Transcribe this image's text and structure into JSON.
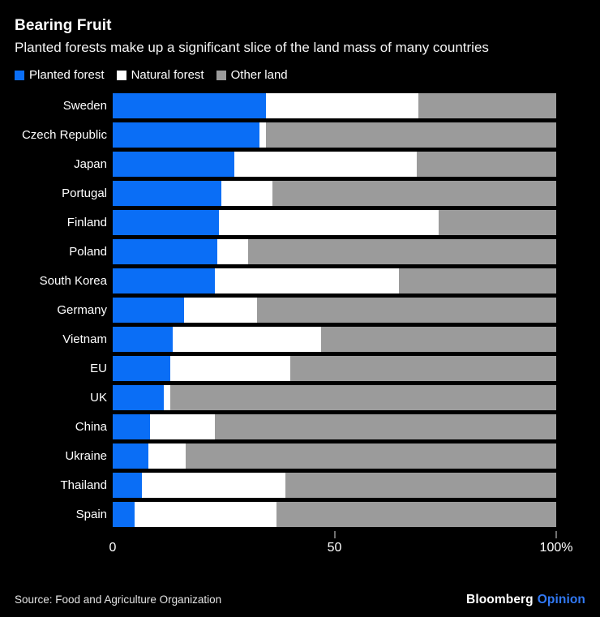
{
  "header": {
    "title": "Bearing Fruit",
    "subtitle": "Planted forests make up a significant slice of the land mass of many countries"
  },
  "colors": {
    "background": "#000000",
    "planted": "#0a6ef6",
    "natural": "#ffffff",
    "other": "#9b9b9b",
    "tick": "#6f6f6f",
    "opinion_blue": "#3179f5"
  },
  "legend": [
    {
      "label": "Planted forest",
      "color": "#0a6ef6"
    },
    {
      "label": "Natural forest",
      "color": "#ffffff"
    },
    {
      "label": "Other land",
      "color": "#9b9b9b"
    }
  ],
  "chart_data": {
    "type": "bar",
    "orientation": "horizontal",
    "stacked": true,
    "title": "Bearing Fruit",
    "categories": [
      "Sweden",
      "Czech Republic",
      "Japan",
      "Portugal",
      "Finland",
      "Poland",
      "South Korea",
      "Germany",
      "Vietnam",
      "EU",
      "UK",
      "China",
      "Ukraine",
      "Thailand",
      "Spain"
    ],
    "series": [
      {
        "name": "Planted forest",
        "color": "#0a6ef6",
        "values": [
          34.5,
          33,
          27.5,
          24.5,
          24,
          23.5,
          23,
          16,
          13.5,
          13,
          11.5,
          8.5,
          8,
          6.5,
          5
        ]
      },
      {
        "name": "Natural forest",
        "color": "#ffffff",
        "values": [
          34.5,
          1.5,
          41,
          11.5,
          49.5,
          7,
          41.5,
          16.5,
          33.5,
          27,
          1.5,
          14.5,
          8.5,
          32.5,
          32
        ]
      },
      {
        "name": "Other land",
        "color": "#9b9b9b",
        "values": [
          31,
          65.5,
          31.5,
          64,
          26.5,
          69.5,
          35.5,
          67.5,
          53,
          60,
          87,
          77,
          83.5,
          61,
          63
        ]
      }
    ],
    "xlim": [
      0,
      100
    ],
    "x_ticks": [
      {
        "value": 0,
        "label": "0",
        "tick": false
      },
      {
        "value": 50,
        "label": "50",
        "tick": true
      },
      {
        "value": 100,
        "label": "100%",
        "tick": true
      }
    ],
    "grid": false,
    "legend_position": "top"
  },
  "footer": {
    "source": "Source: Food and Agriculture Organization",
    "brand": "Bloomberg",
    "brand_suffix": "Opinion"
  }
}
